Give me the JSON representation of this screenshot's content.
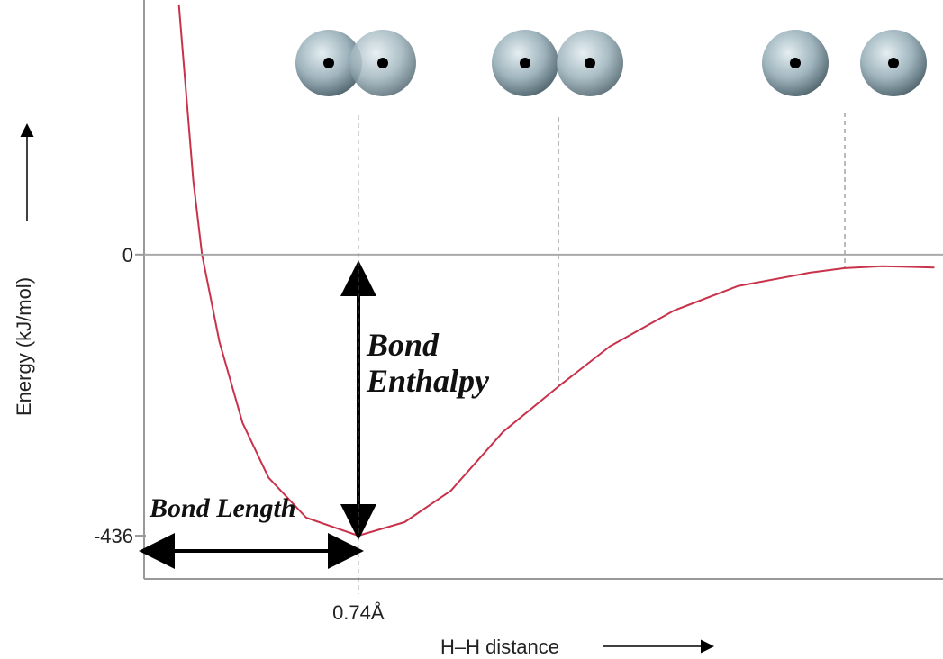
{
  "chart_data": {
    "type": "line",
    "x_label": "H–H distance",
    "y_label": "Energy (kJ/mol)",
    "annotations": [
      "Bond Length",
      "Bond Enthalpy"
    ],
    "x": [
      0.12,
      0.17,
      0.2,
      0.26,
      0.34,
      0.43,
      0.56,
      0.74,
      0.9,
      1.06,
      1.24,
      1.43,
      1.61,
      1.83,
      2.05,
      2.3,
      2.42,
      2.55,
      2.73
    ],
    "series": [
      {
        "color": "#c8324a",
        "values": [
          388,
          115,
          0,
          -135,
          -261,
          -346,
          -408,
          -436,
          -415,
          -366,
          -275,
          -205,
          -142,
          -87,
          -49,
          -28,
          -21,
          -18,
          -20
        ]
      }
    ],
    "xlim": [
      0,
      2.76
    ],
    "ylim": [
      -503,
      395
    ],
    "xticks": [
      {
        "value": 0.74,
        "label": "0.74Å"
      }
    ],
    "yticks": [
      0,
      -436
    ]
  }
}
